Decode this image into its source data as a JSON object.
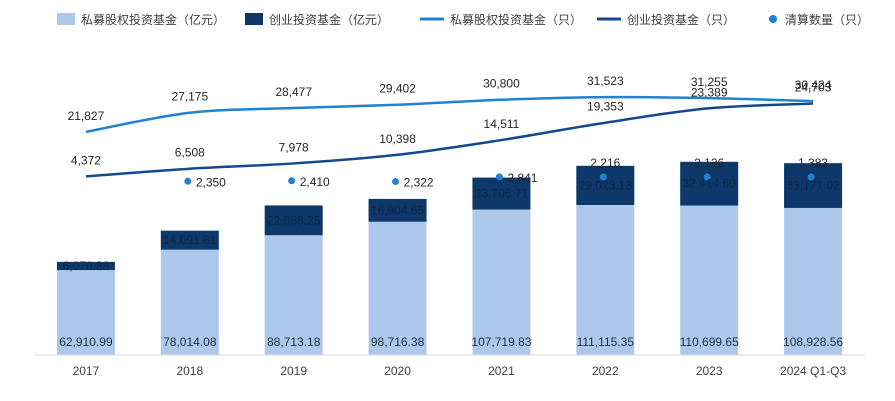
{
  "chart_data": {
    "type": "bar",
    "categories": [
      "2017",
      "2018",
      "2019",
      "2020",
      "2021",
      "2022",
      "2023",
      "2024 Q1-Q3"
    ],
    "series": [
      {
        "name": "私募股权投资基金（亿元）",
        "kind": "stacked-bar",
        "color": "#adc8ea",
        "values": [
          62910.99,
          78014.08,
          88713.18,
          98716.38,
          107719.83,
          111115.35,
          110699.65,
          108928.56
        ],
        "labels": [
          "62,910.99",
          "78,014.08",
          "88,713.18",
          "98,716.38",
          "107,719.83",
          "111,115.35",
          "110,699.65",
          "108,928.56"
        ]
      },
      {
        "name": "创业投资基金（亿元）",
        "kind": "stacked-bar",
        "color": "#0d3869",
        "values": [
          6070.88,
          14091.61,
          22088.25,
          16904.65,
          23706.71,
          29023.13,
          32414.6,
          33171.02
        ],
        "labels": [
          "6,070.88",
          "14,091.61",
          "22,088.25",
          "16,904.65",
          "23,706.71",
          "29,023.13",
          "32,414.60",
          "33,171.02"
        ]
      },
      {
        "name": "私募股权投资基金（只）",
        "kind": "line",
        "color": "#1f82d2",
        "values": [
          21827,
          27175,
          28477,
          29402,
          30800,
          31523,
          31255,
          30424
        ],
        "labels": [
          "21,827",
          "27,175",
          "28,477",
          "29,402",
          "30,800",
          "31,523",
          "31,255",
          "30,424"
        ]
      },
      {
        "name": "创业投资基金（只）",
        "kind": "line",
        "color": "#12498e",
        "values": [
          4372,
          6508,
          7978,
          10398,
          14511,
          19353,
          23389,
          24703
        ],
        "labels": [
          "4,372",
          "6,508",
          "7,978",
          "10,398",
          "14,511",
          "19,353",
          "23,389",
          "24,703"
        ]
      },
      {
        "name": "清算数量（只）",
        "kind": "scatter",
        "color": "#1f82d2",
        "values": [
          null,
          2350,
          2410,
          2322,
          2841,
          2216,
          2136,
          1383
        ],
        "labels": [
          "",
          "2,350",
          "2,410",
          "2,322",
          "2,841",
          "2,216",
          "2,136",
          "1,383"
        ]
      }
    ],
    "legend_position": "top",
    "grid": false
  }
}
